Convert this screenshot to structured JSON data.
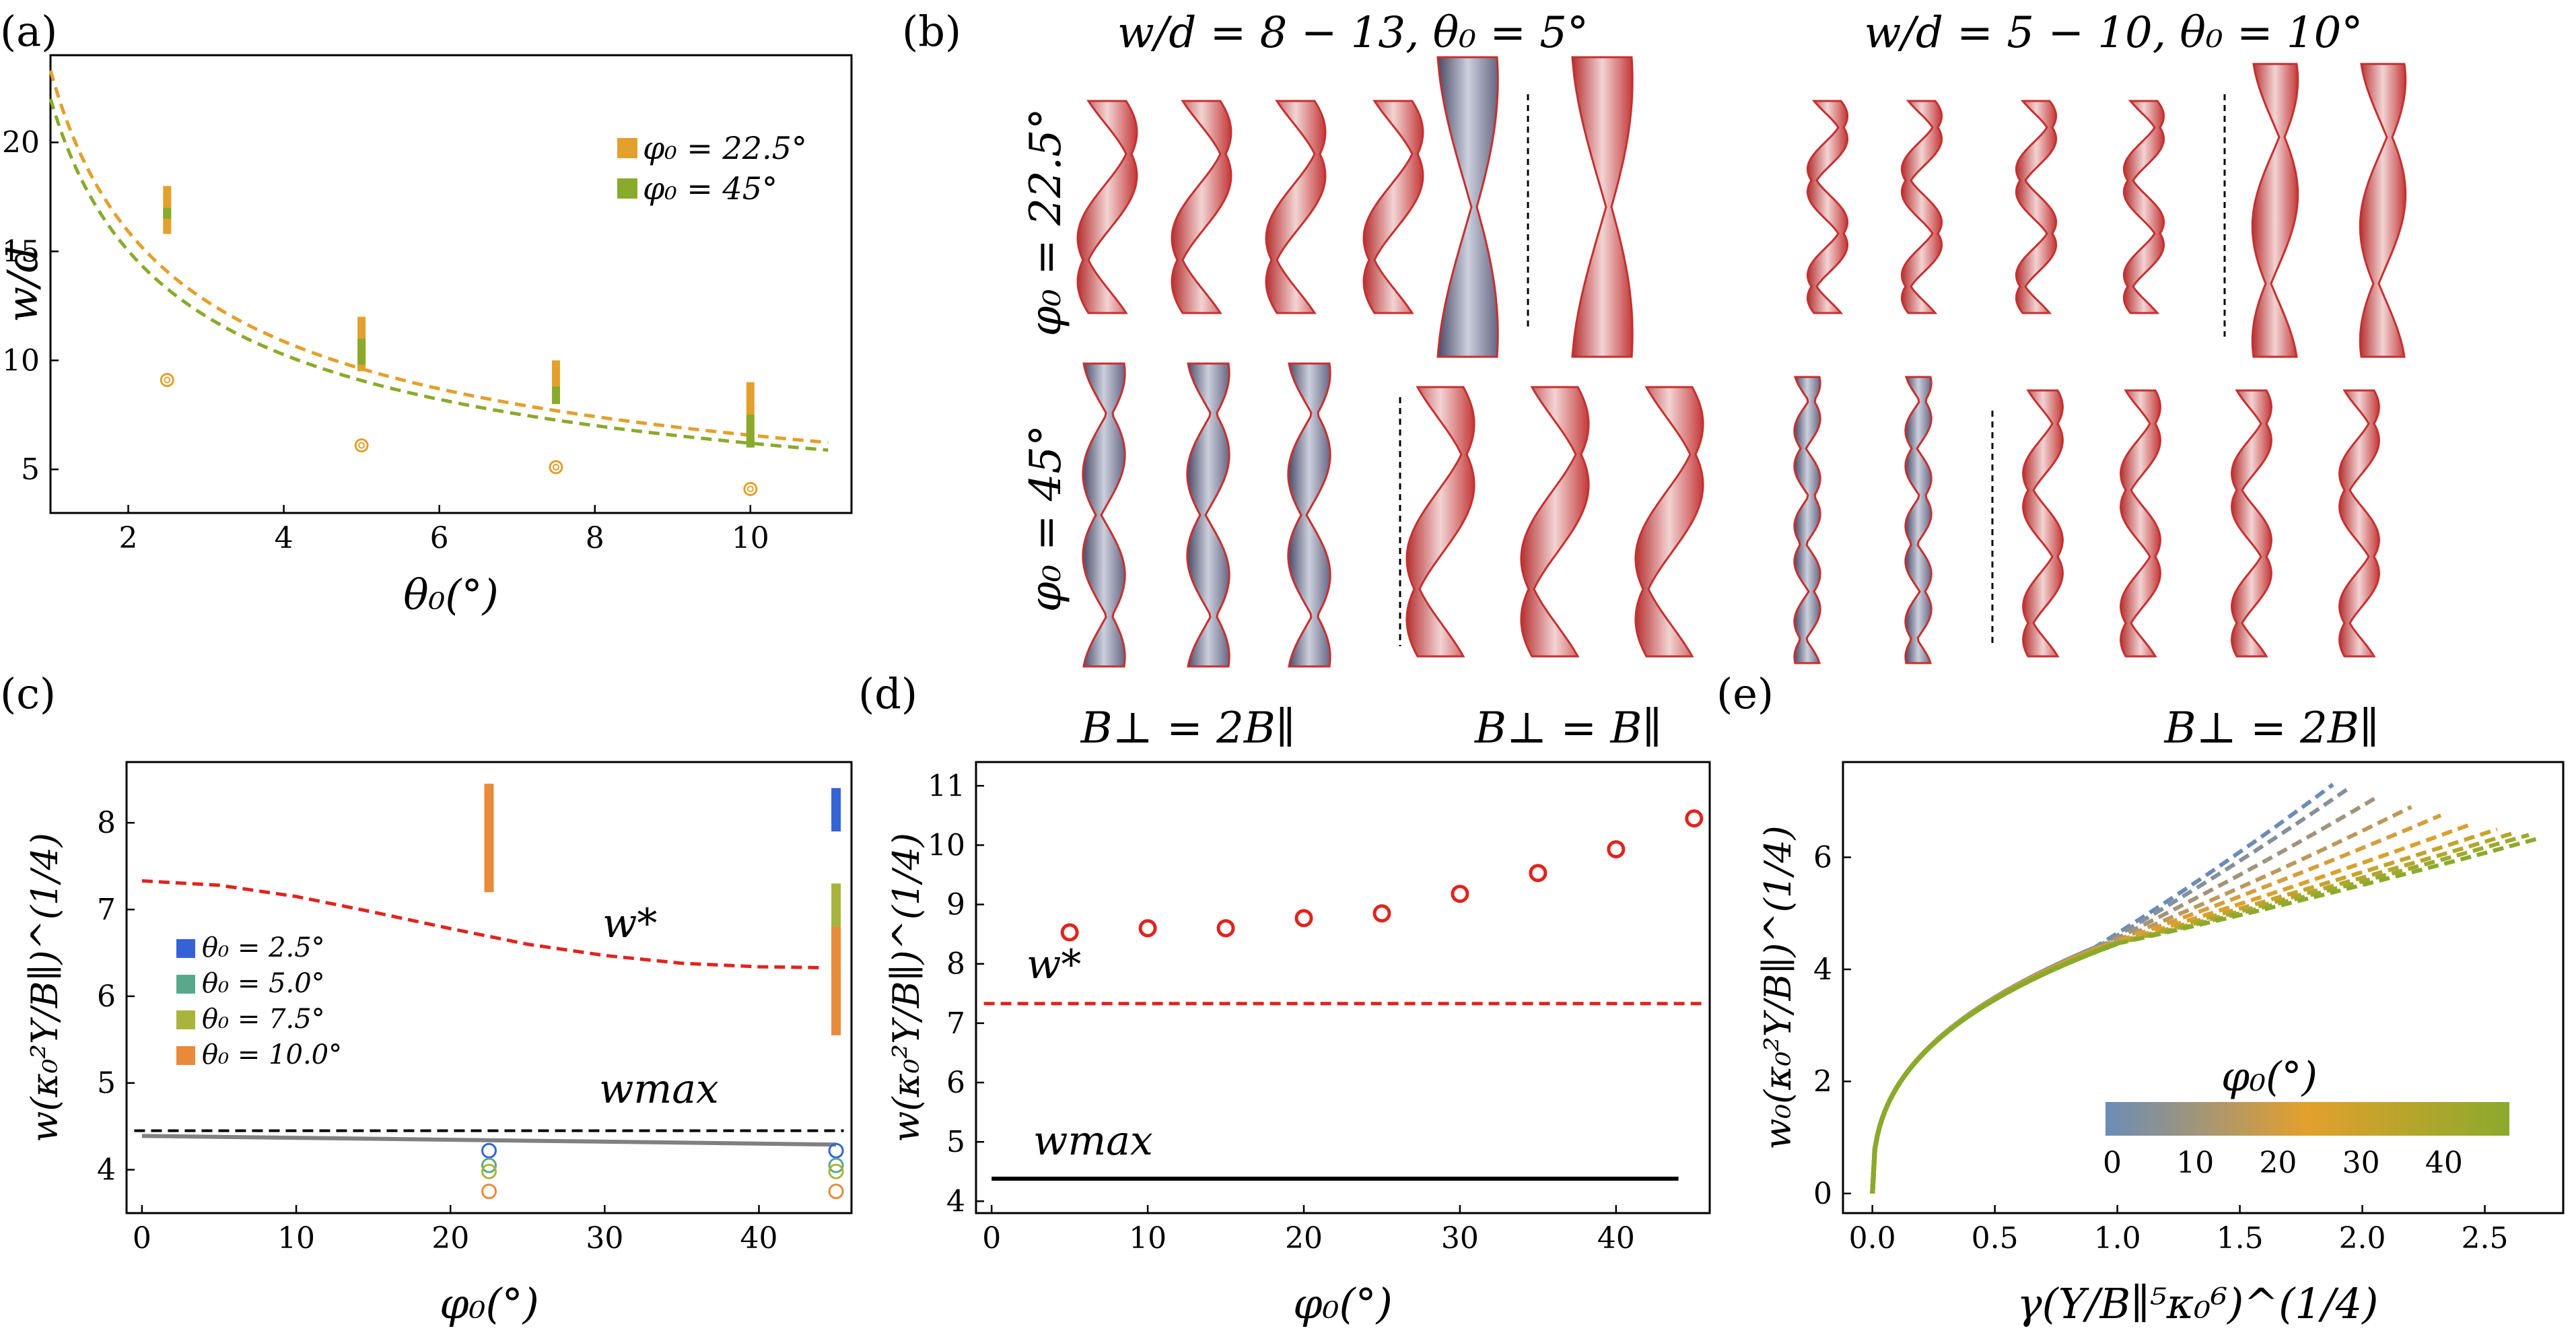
{
  "figure": {
    "panel_labels": [
      "(a)",
      "(b)",
      "(c)",
      "(d)",
      "(e)"
    ],
    "b_titles": {
      "left": "w/d = 8 − 13,  θ₀ = 5°",
      "right": "w/d = 5 − 10,  θ₀ = 10°"
    },
    "b_row_labels": {
      "top": "φ₀ = 22.5°",
      "bottom": "φ₀ = 45°"
    },
    "c_title": "B⊥ = 2B∥",
    "d_title": "B⊥ = B∥",
    "e_title": "B⊥ = 2B∥"
  },
  "colors": {
    "orange": "#E3A02C",
    "green": "#8AAA2C",
    "red": "#E0241E",
    "blue": "#3563D6",
    "teal": "#5AA88C",
    "olive": "#A8B43C",
    "c_orange": "#E98A3A",
    "gray": "#808080"
  },
  "chart_data": [
    {
      "id": "a",
      "type": "scatter",
      "xlabel": "θ₀(°)",
      "ylabel": "w/d",
      "xlim": [
        1,
        11.3
      ],
      "ylim": [
        3,
        24
      ],
      "xticks": [
        "2",
        "4",
        "6",
        "8",
        "10"
      ],
      "yticks": [
        "5",
        "10",
        "15",
        "20"
      ],
      "legend": [
        {
          "label": "φ₀ = 22.5°",
          "color": "orange"
        },
        {
          "label": "φ₀ = 45°",
          "color": "green"
        }
      ],
      "curves": [
        {
          "name": "φ₀ = 22.5°",
          "color": "orange",
          "style": "dashed",
          "A": 23.3
        },
        {
          "name": "φ₀ = 45°",
          "color": "green",
          "style": "dashed",
          "A": 22.0
        }
      ],
      "bars": [
        {
          "x": 2.5,
          "y0": 15.8,
          "y1": 18.0,
          "color": "orange"
        },
        {
          "x": 2.5,
          "y0": 16.5,
          "y1": 17.0,
          "color": "green"
        },
        {
          "x": 5,
          "y0": 9.5,
          "y1": 12.0,
          "color": "orange"
        },
        {
          "x": 5,
          "y0": 9.8,
          "y1": 11.0,
          "color": "green"
        },
        {
          "x": 7.5,
          "y0": 8.0,
          "y1": 10.0,
          "color": "orange"
        },
        {
          "x": 7.5,
          "y0": 8.0,
          "y1": 8.8,
          "color": "green"
        },
        {
          "x": 10,
          "y0": 6.2,
          "y1": 9.0,
          "color": "orange"
        },
        {
          "x": 10,
          "y0": 6.0,
          "y1": 7.5,
          "color": "green"
        }
      ],
      "circles": [
        {
          "x": 2.5,
          "y": 9.1
        },
        {
          "x": 5,
          "y": 6.1
        },
        {
          "x": 7.5,
          "y": 5.1
        },
        {
          "x": 10,
          "y": 4.1
        }
      ]
    },
    {
      "id": "c",
      "type": "line",
      "title": "B⊥ = 2B∥",
      "xlabel": "φ₀(°)",
      "ylabel": "w(κ₀²Y/B∥)^(1/4)",
      "xlim": [
        -1,
        46
      ],
      "ylim": [
        3.5,
        8.7
      ],
      "xticks": [
        "0",
        "10",
        "20",
        "30",
        "40"
      ],
      "yticks": [
        "4",
        "5",
        "6",
        "7",
        "8"
      ],
      "w_star": {
        "label": "w*",
        "color": "red",
        "x": [
          0,
          5,
          10,
          15,
          20,
          25,
          30,
          35,
          40,
          44
        ],
        "y": [
          7.33,
          7.28,
          7.15,
          6.97,
          6.78,
          6.6,
          6.47,
          6.38,
          6.34,
          6.33
        ]
      },
      "w_max": {
        "label": "wmax",
        "y": 4.45
      },
      "gray_line": {
        "x0": 0,
        "x1": 45,
        "y0": 4.39,
        "y1": 4.29
      },
      "legend": [
        {
          "label": "θ₀ = 2.5°",
          "color": "blue"
        },
        {
          "label": "θ₀ = 5.0°",
          "color": "teal"
        },
        {
          "label": "θ₀ = 7.5°",
          "color": "olive"
        },
        {
          "label": "θ₀ = 10.0°",
          "color": "c_orange"
        }
      ],
      "bars": [
        {
          "x": 22.5,
          "y0": 7.2,
          "y1": 8.45,
          "color": "c_orange"
        },
        {
          "x": 45,
          "y0": 7.9,
          "y1": 8.4,
          "color": "blue"
        },
        {
          "x": 45,
          "y0": 6.3,
          "y1": 7.3,
          "color": "olive"
        },
        {
          "x": 45,
          "y0": 5.55,
          "y1": 6.8,
          "color": "c_orange"
        }
      ],
      "circles": [
        {
          "x": 22.5,
          "y": 4.22,
          "color": "blue"
        },
        {
          "x": 22.5,
          "y": 4.05,
          "color": "teal"
        },
        {
          "x": 22.5,
          "y": 3.98,
          "color": "olive"
        },
        {
          "x": 22.5,
          "y": 3.75,
          "color": "c_orange"
        },
        {
          "x": 45,
          "y": 4.22,
          "color": "blue"
        },
        {
          "x": 45,
          "y": 4.05,
          "color": "teal"
        },
        {
          "x": 45,
          "y": 3.98,
          "color": "olive"
        },
        {
          "x": 45,
          "y": 3.75,
          "color": "c_orange"
        }
      ]
    },
    {
      "id": "d",
      "type": "scatter",
      "title": "B⊥ = B∥",
      "xlabel": "φ₀(°)",
      "ylabel": "w(κ₀²Y/B∥)^(1/4)",
      "xlim": [
        -1,
        46
      ],
      "ylim": [
        3.8,
        11.4
      ],
      "xticks": [
        "0",
        "10",
        "20",
        "30",
        "40"
      ],
      "yticks": [
        "4",
        "5",
        "6",
        "7",
        "8",
        "9",
        "10",
        "11"
      ],
      "points": {
        "x": [
          5,
          10,
          15,
          20,
          25,
          30,
          35,
          40,
          45
        ],
        "y": [
          8.53,
          8.6,
          8.6,
          8.77,
          8.85,
          9.18,
          9.53,
          9.93,
          10.45
        ],
        "color": "red"
      },
      "w_star": {
        "label": "w*",
        "y": 7.33
      },
      "w_max": {
        "label": "wmax",
        "y": 4.38,
        "x0": 0,
        "x1": 44
      }
    },
    {
      "id": "e",
      "type": "line",
      "title": "B⊥ = 2B∥",
      "xlabel": "γ(Y/B∥⁵κ₀⁶)^(1/4)",
      "ylabel": "w₀(κ₀²Y/B∥)^(1/4)",
      "xlim": [
        -0.12,
        2.82
      ],
      "ylim": [
        -0.35,
        7.7
      ],
      "xticks": [
        "0.0",
        "0.5",
        "1.0",
        "1.5",
        "2.0",
        "2.5"
      ],
      "yticks": [
        "0",
        "2",
        "4",
        "6"
      ],
      "colorbar": {
        "label": "φ₀(°)",
        "ticks": [
          "0",
          "10",
          "20",
          "30",
          "40"
        ],
        "range": [
          0,
          45
        ]
      },
      "family": [
        {
          "phi0": 0,
          "x_end": 1.88,
          "y_end": 7.3
        },
        {
          "phi0": 5,
          "x_end": 1.95,
          "y_end": 7.25
        },
        {
          "phi0": 10,
          "x_end": 2.07,
          "y_end": 7.1
        },
        {
          "phi0": 15,
          "x_end": 2.2,
          "y_end": 6.9
        },
        {
          "phi0": 20,
          "x_end": 2.32,
          "y_end": 6.75
        },
        {
          "phi0": 25,
          "x_end": 2.45,
          "y_end": 6.6
        },
        {
          "phi0": 30,
          "x_end": 2.55,
          "y_end": 6.5
        },
        {
          "phi0": 35,
          "x_end": 2.63,
          "y_end": 6.45
        },
        {
          "phi0": 40,
          "x_end": 2.68,
          "y_end": 6.4
        },
        {
          "phi0": 45,
          "x_end": 2.73,
          "y_end": 6.35
        }
      ]
    }
  ]
}
